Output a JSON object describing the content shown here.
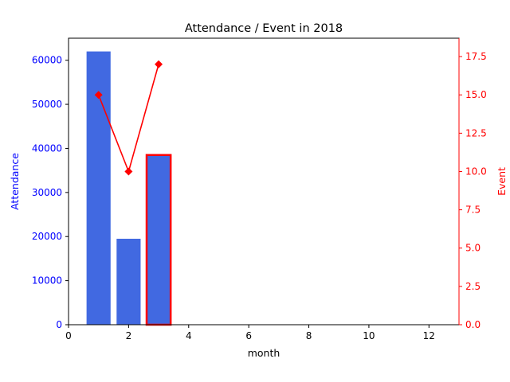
{
  "chart_data": {
    "type": "bar",
    "title": "Attendance / Event in 2018",
    "xlabel": "month",
    "ylabel_left": "Attendance",
    "ylabel_right": "Event",
    "xlim": [
      0,
      13
    ],
    "ylim_left": [
      0,
      65000
    ],
    "ylim_right": [
      0,
      18.7
    ],
    "x_ticks": [
      "0",
      "2",
      "4",
      "6",
      "8",
      "10",
      "12"
    ],
    "y_left_ticks": [
      "0",
      "10000",
      "20000",
      "30000",
      "40000",
      "50000",
      "60000"
    ],
    "y_right_ticks": [
      "0.0",
      "2.5",
      "5.0",
      "7.5",
      "10.0",
      "12.5",
      "15.0",
      "17.5"
    ],
    "grid": false,
    "series": [
      {
        "type": "bar",
        "axis": "left",
        "color": "#4169e1",
        "points": [
          {
            "x": 1,
            "y": 62000
          },
          {
            "x": 2,
            "y": 19500
          },
          {
            "x": 3,
            "y": 38500,
            "highlighted": true
          }
        ]
      },
      {
        "type": "line",
        "axis": "right",
        "color": "#ff0000",
        "marker": "diamond",
        "points": [
          {
            "x": 1,
            "y": 15
          },
          {
            "x": 2,
            "y": 10
          },
          {
            "x": 3,
            "y": 17
          }
        ]
      }
    ],
    "colors": {
      "left_axis": "#0000ff",
      "right_axis": "#ff0000",
      "highlight_edge": "#ff0000"
    }
  }
}
